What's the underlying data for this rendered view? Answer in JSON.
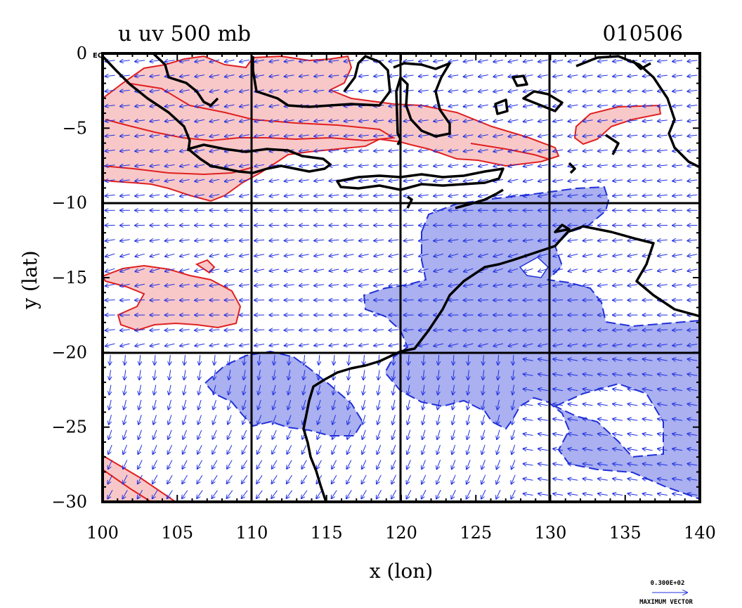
{
  "chart_data": {
    "type": "vector-map",
    "title_left": "u uv 500 mb",
    "title_right": "010506",
    "xlabel": "x (lon)",
    "ylabel": "y (lat)",
    "xlim": [
      100,
      140
    ],
    "ylim": [
      -30,
      0
    ],
    "x_ticks": [
      100,
      105,
      110,
      115,
      120,
      125,
      130,
      135,
      140
    ],
    "y_ticks": [
      0,
      -5,
      -10,
      -15,
      -20,
      -25,
      -30
    ],
    "y_tick_labels": [
      "0",
      "−5",
      "−10",
      "−15",
      "−20",
      "−25",
      "−30"
    ],
    "equator_label": "EQ",
    "grid_lon": [
      110,
      120,
      130
    ],
    "grid_lat": [
      -10,
      -20
    ],
    "reference_vector": {
      "value_text": "0.300E+02",
      "caption": "MAXIMUM VECTOR"
    },
    "positive_shading_color": "#f8c8c8",
    "positive_contour_color": "#e02020",
    "negative_shading_color": "#aab0f0",
    "negative_contour_color": "#2030d8",
    "vector_color": "#2030e0",
    "coast_color": "#000000"
  }
}
